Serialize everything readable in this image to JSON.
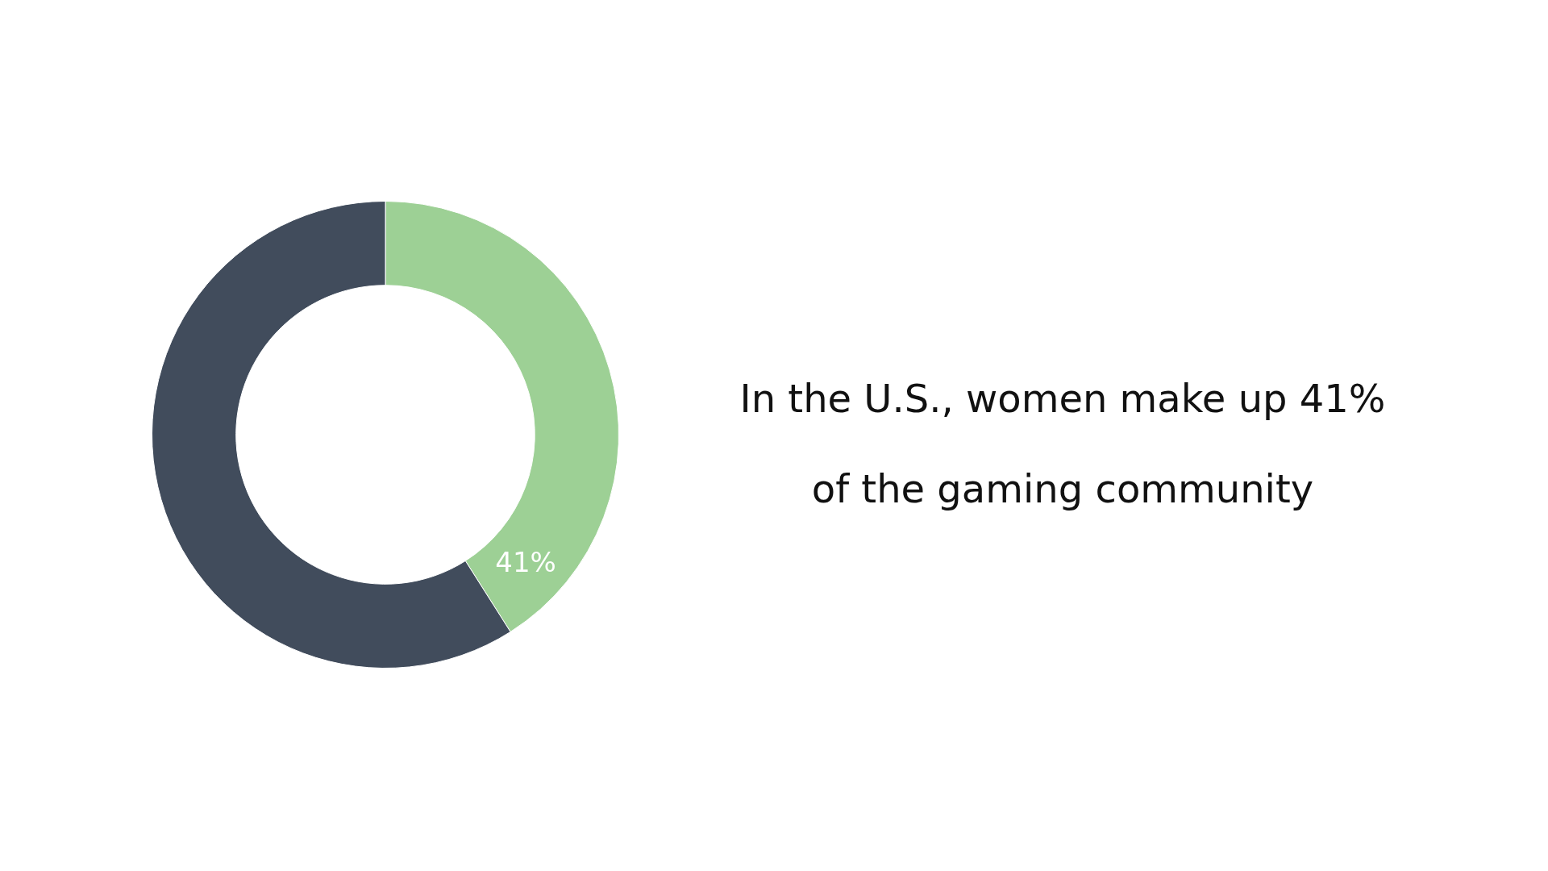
{
  "chart_data": {
    "type": "donut",
    "title": "In the U.S., women make up 41% of the gaming community",
    "categories": [
      null,
      null
    ],
    "values": [
      41,
      59
    ],
    "colors": [
      "#9dd095",
      "#414c5c"
    ],
    "value_labels": [
      "41%",
      null
    ],
    "legend": false
  }
}
